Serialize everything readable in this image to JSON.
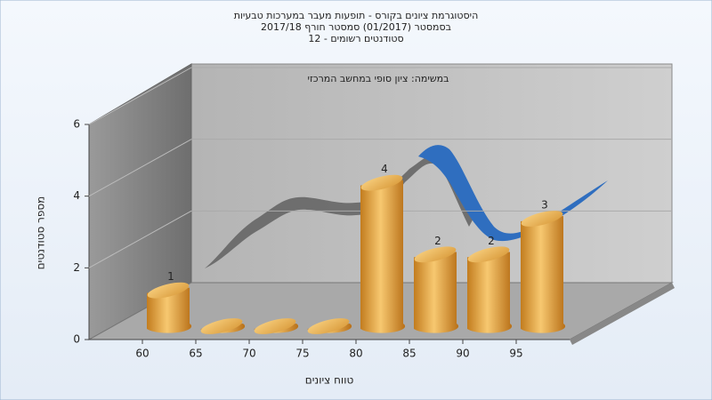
{
  "chart_data": {
    "type": "histogram",
    "title": [
      "היסטוגרמת ציונים בקורס - תופעות מעבר במערכות טבעיות",
      "בסמסטר  (01/2017)  סמסטר חורף 2017/18",
      "סטודנטים רשומים - 12"
    ],
    "subtitle": "במשימה: ציון סופי במחשב המרכזי",
    "x_label": "טווח ציונים",
    "y_label": "מספר סטודנטים",
    "bins": [
      60,
      65,
      70,
      75,
      80,
      85,
      90,
      95,
      100
    ],
    "values": [
      1,
      0,
      0,
      0,
      4,
      2,
      2,
      3
    ],
    "color": "#e0a040",
    "xlim": [
      55,
      100
    ],
    "xticks": [
      60,
      65,
      70,
      75,
      80,
      85,
      90,
      95
    ],
    "ylim": [
      0,
      6
    ],
    "yticks": [
      0,
      2,
      4,
      6
    ],
    "grid": true
  }
}
